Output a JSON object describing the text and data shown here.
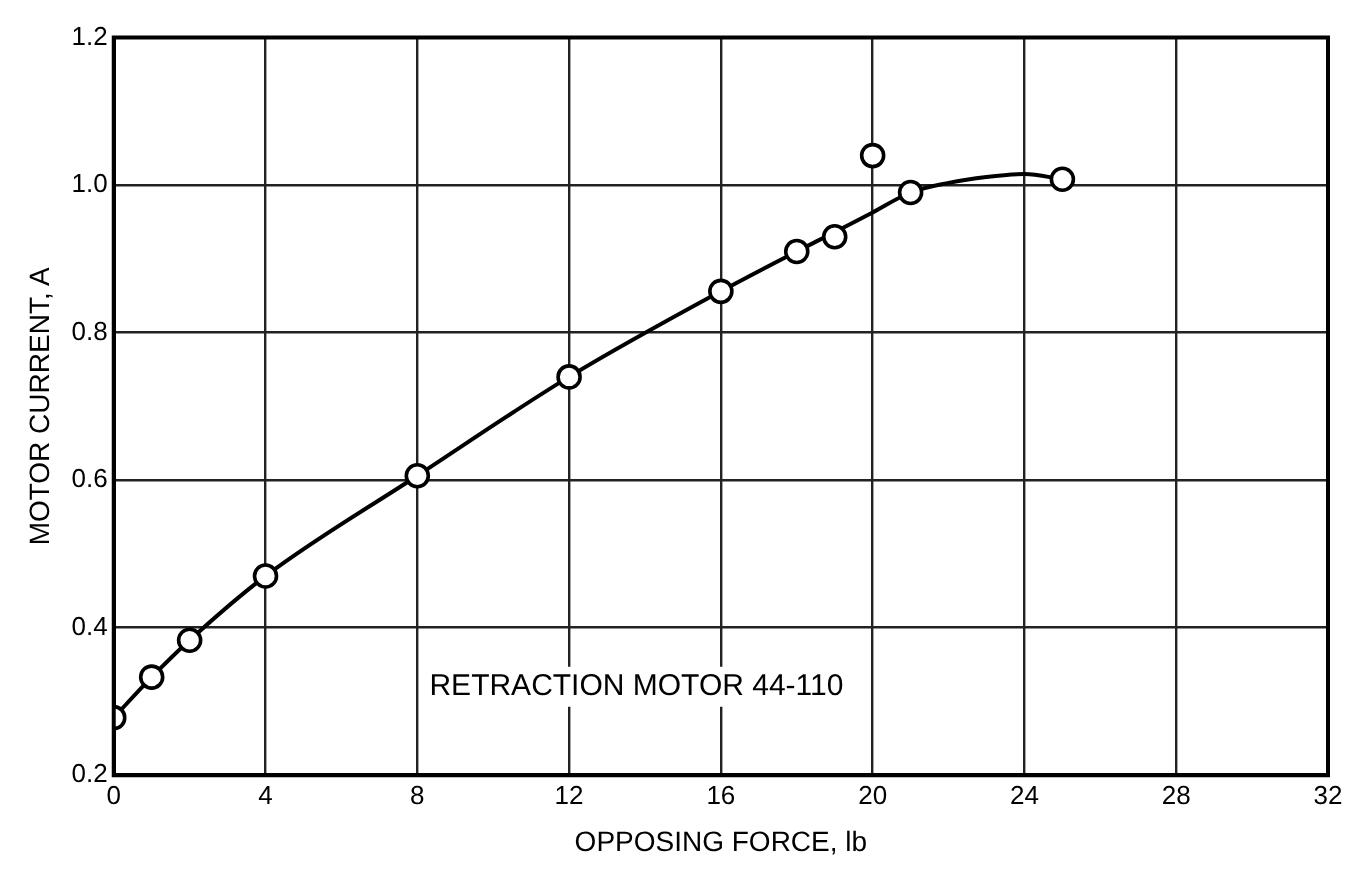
{
  "chart_data": {
    "type": "scatter",
    "xlabel": "OPPOSING FORCE, lb",
    "ylabel": "MOTOR CURRENT, A",
    "annotations": [
      "RETRACTION MOTOR 44-110"
    ],
    "series": [
      {
        "type": "line",
        "color": "#000000",
        "marker": "none",
        "x": [
          0,
          1,
          2,
          4,
          8,
          12,
          16,
          20,
          21,
          22,
          23,
          24,
          25
        ],
        "values": [
          0.278,
          0.333,
          0.383,
          0.47,
          0.606,
          0.74,
          0.856,
          0.963,
          0.99,
          1.003,
          1.011,
          1.015,
          1.008
        ]
      },
      {
        "type": "scatter",
        "color": "#000000",
        "marker": "circle",
        "x": [
          0,
          1,
          2,
          4,
          8,
          12,
          16,
          18,
          19,
          20,
          21,
          25
        ],
        "values": [
          0.278,
          0.333,
          0.383,
          0.47,
          0.606,
          0.74,
          0.856,
          0.91,
          0.93,
          1.04,
          0.99,
          1.008
        ]
      }
    ],
    "xlim": [
      0,
      32
    ],
    "xticks": [
      0,
      4,
      8,
      12,
      16,
      20,
      24,
      28,
      32
    ],
    "ylim": [
      0.2,
      1.2
    ],
    "yticks": [
      0.2,
      0.4,
      0.6,
      0.8,
      {
        "value": 1,
        "label": "1.0"
      },
      1.2
    ],
    "grid": true,
    "legend": false
  }
}
